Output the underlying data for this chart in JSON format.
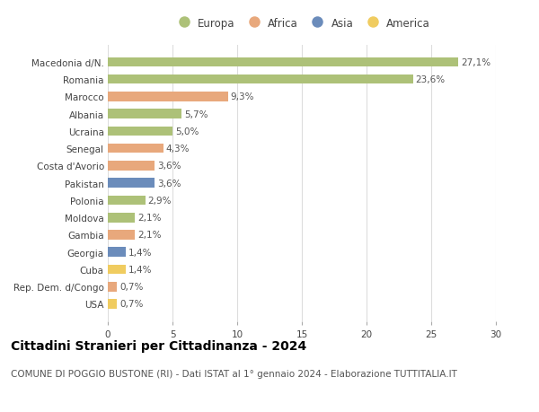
{
  "categories": [
    "USA",
    "Rep. Dem. d/Congo",
    "Cuba",
    "Georgia",
    "Gambia",
    "Moldova",
    "Polonia",
    "Pakistan",
    "Costa d'Avorio",
    "Senegal",
    "Ucraina",
    "Albania",
    "Marocco",
    "Romania",
    "Macedonia d/N."
  ],
  "values": [
    0.7,
    0.7,
    1.4,
    1.4,
    2.1,
    2.1,
    2.9,
    3.6,
    3.6,
    4.3,
    5.0,
    5.7,
    9.3,
    23.6,
    27.1
  ],
  "labels": [
    "0,7%",
    "0,7%",
    "1,4%",
    "1,4%",
    "2,1%",
    "2,1%",
    "2,9%",
    "3,6%",
    "3,6%",
    "4,3%",
    "5,0%",
    "5,7%",
    "9,3%",
    "23,6%",
    "27,1%"
  ],
  "continents": [
    "America",
    "Africa",
    "America",
    "Asia",
    "Africa",
    "Europa",
    "Europa",
    "Asia",
    "Africa",
    "Africa",
    "Europa",
    "Europa",
    "Africa",
    "Europa",
    "Europa"
  ],
  "colors": {
    "Europa": "#adc178",
    "Africa": "#e8a87c",
    "Asia": "#6b8cbb",
    "America": "#f0cc60"
  },
  "legend_entries": [
    "Europa",
    "Africa",
    "Asia",
    "America"
  ],
  "title": "Cittadini Stranieri per Cittadinanza - 2024",
  "subtitle": "COMUNE DI POGGIO BUSTONE (RI) - Dati ISTAT al 1° gennaio 2024 - Elaborazione TUTTITALIA.IT",
  "xlim": [
    0,
    30
  ],
  "xticks": [
    0,
    5,
    10,
    15,
    20,
    25,
    30
  ],
  "background_color": "#ffffff",
  "grid_color": "#dddddd",
  "bar_height": 0.55,
  "title_fontsize": 10,
  "subtitle_fontsize": 7.5,
  "label_fontsize": 7.5,
  "tick_fontsize": 7.5,
  "legend_fontsize": 8.5
}
